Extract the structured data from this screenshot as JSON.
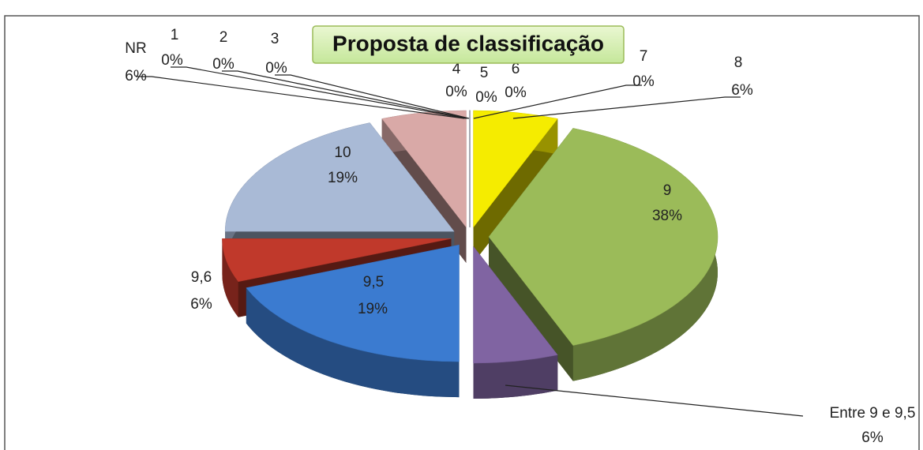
{
  "chart_data": {
    "type": "pie3d",
    "title": "Proposta de classificação",
    "categories": [
      "1",
      "2",
      "3",
      "4",
      "5",
      "6",
      "7",
      "8",
      "9",
      "Entre 9 e 9,5",
      "9,5",
      "9,6",
      "10",
      "NR"
    ],
    "values": [
      0,
      0,
      0,
      0,
      0,
      0,
      0,
      6,
      38,
      6,
      19,
      6,
      19,
      6
    ],
    "value_labels": [
      "0%",
      "0%",
      "0%",
      "0%",
      "0%",
      "0%",
      "0%",
      "6%",
      "38%",
      "6%",
      "19%",
      "6%",
      "19%",
      "6%"
    ],
    "colors": [
      "#4f81bd",
      "#c0504d",
      "#9bbb59",
      "#8064a2",
      "#4bacc6",
      "#f79646",
      "#2c4d75",
      "#f5ec00",
      "#9bbb59",
      "#8064a2",
      "#3b7bd0",
      "#c0392b",
      "#a9bad6",
      "#d9a9a7"
    ]
  }
}
